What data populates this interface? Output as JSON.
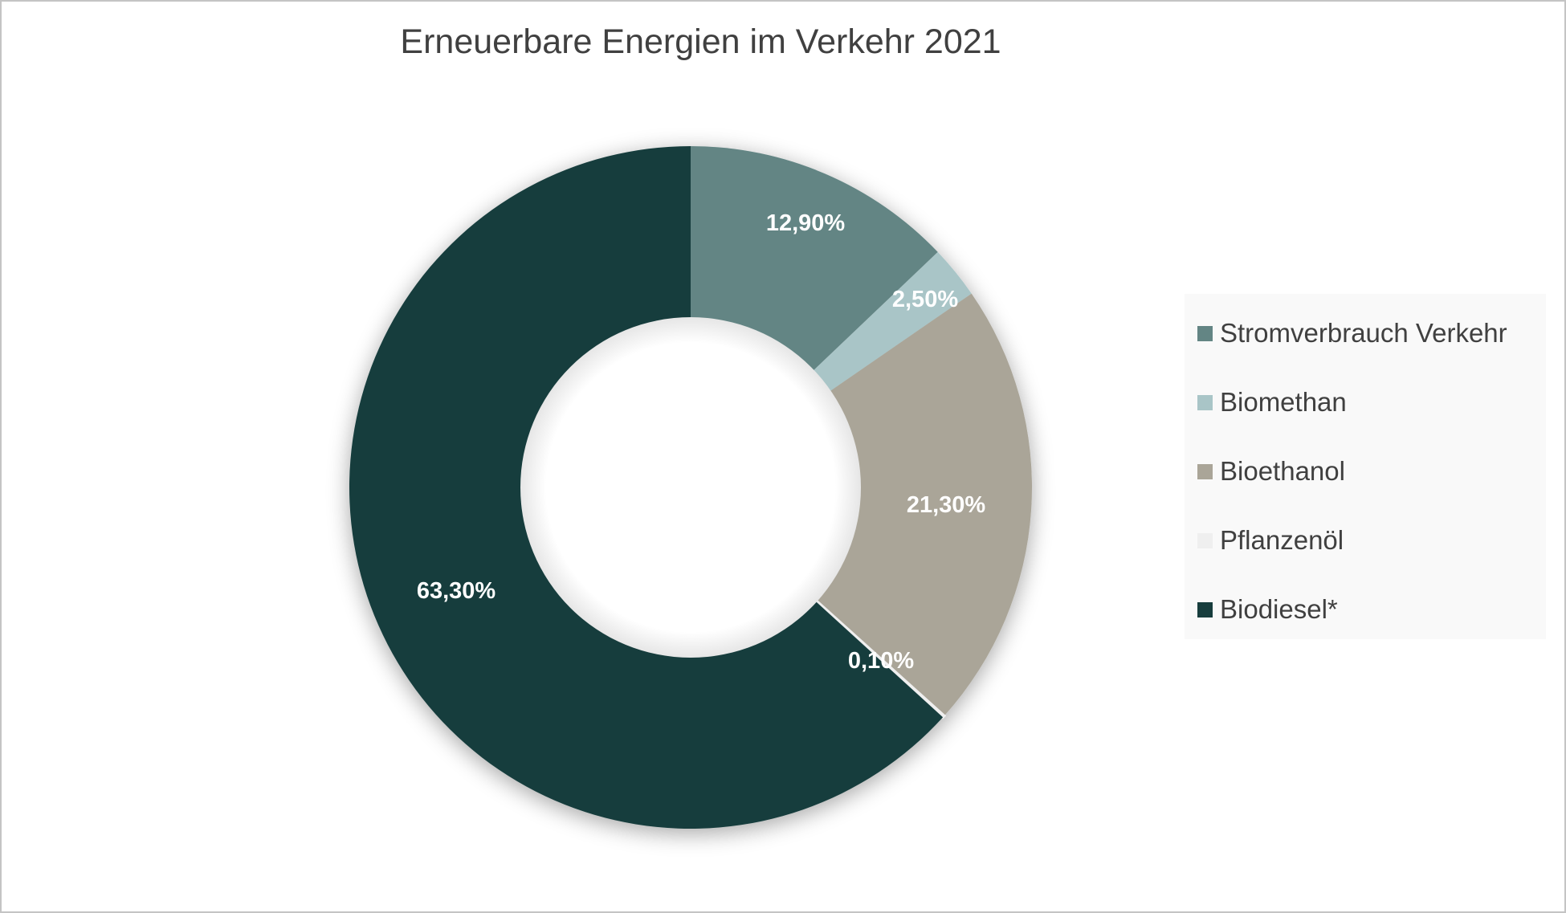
{
  "chart_data": {
    "type": "pie",
    "variant": "donut",
    "title": "Erneuerbare Energien im Verkehr 2021",
    "categories": [
      "Stromverbrauch Verkehr",
      "Biomethan",
      "Bioethanol",
      "Pflanzenöl",
      "Biodiesel*"
    ],
    "values": [
      12.9,
      2.5,
      21.3,
      0.1,
      63.3
    ],
    "labels": [
      "12,90%",
      "2,50%",
      "21,30%",
      "0,10%",
      "63,30%"
    ],
    "colors": [
      "#638584",
      "#a9c5c7",
      "#aaa598",
      "#efefef",
      "#173d3d"
    ],
    "unit": "%",
    "start_angle": "12 o'clock, clockwise",
    "legend_position": "right"
  },
  "chart": {
    "title": "Erneuerbare Energien im Verkehr 2021"
  },
  "legend": {
    "items": [
      {
        "label": "Stromverbrauch Verkehr",
        "color": "#638584"
      },
      {
        "label": "Biomethan",
        "color": "#a9c5c7"
      },
      {
        "label": "Bioethanol",
        "color": "#aaa598"
      },
      {
        "label": "Pflanzenöl",
        "color": "#efefef"
      },
      {
        "label": "Biodiesel*",
        "color": "#173d3d"
      }
    ]
  }
}
